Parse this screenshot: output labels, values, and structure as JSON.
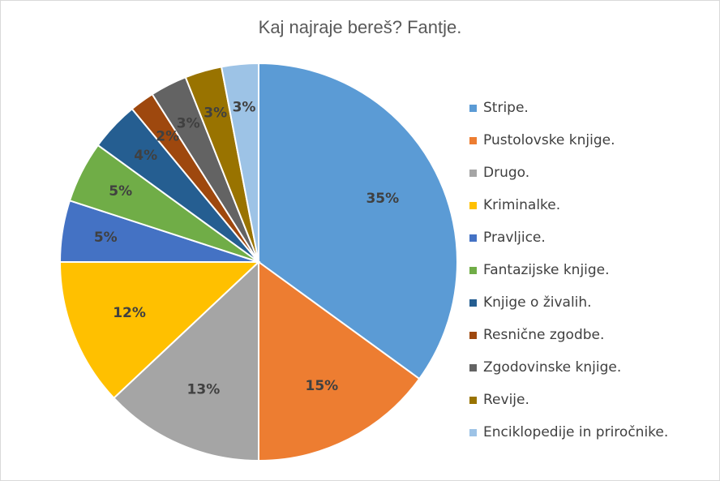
{
  "chart_data": {
    "type": "pie",
    "title": "Kaj najraje bereš? Fantje.",
    "categories": [
      "Stripe.",
      "Pustolovske knjige.",
      "Drugo.",
      "Kriminalke.",
      "Pravljice.",
      "Fantazijske knjige.",
      "Knjige o živalih.",
      "Resnične zgodbe.",
      "Zgodovinske knjige.",
      "Revije.",
      "Enciklopedije in priročnike."
    ],
    "values": [
      35,
      15,
      13,
      12,
      5,
      5,
      4,
      2,
      3,
      3,
      3
    ],
    "value_labels": [
      "35%",
      "15%",
      "13%",
      "12%",
      "5%",
      "5%",
      "4%",
      "2%",
      "3%",
      "3%",
      "3%"
    ],
    "colors": [
      "#5b9bd5",
      "#ed7d31",
      "#a5a5a5",
      "#ffc000",
      "#4472c4",
      "#70ad47",
      "#255e91",
      "#9e480e",
      "#636363",
      "#997300",
      "#9dc3e6"
    ],
    "label_colors": [
      "#404040",
      "#404040",
      "#404040",
      "#404040",
      "#404040",
      "#404040",
      "#404040",
      "#404040",
      "#404040",
      "#404040",
      "#404040"
    ],
    "legend_position": "right",
    "start_angle": "top",
    "direction": "clockwise"
  }
}
